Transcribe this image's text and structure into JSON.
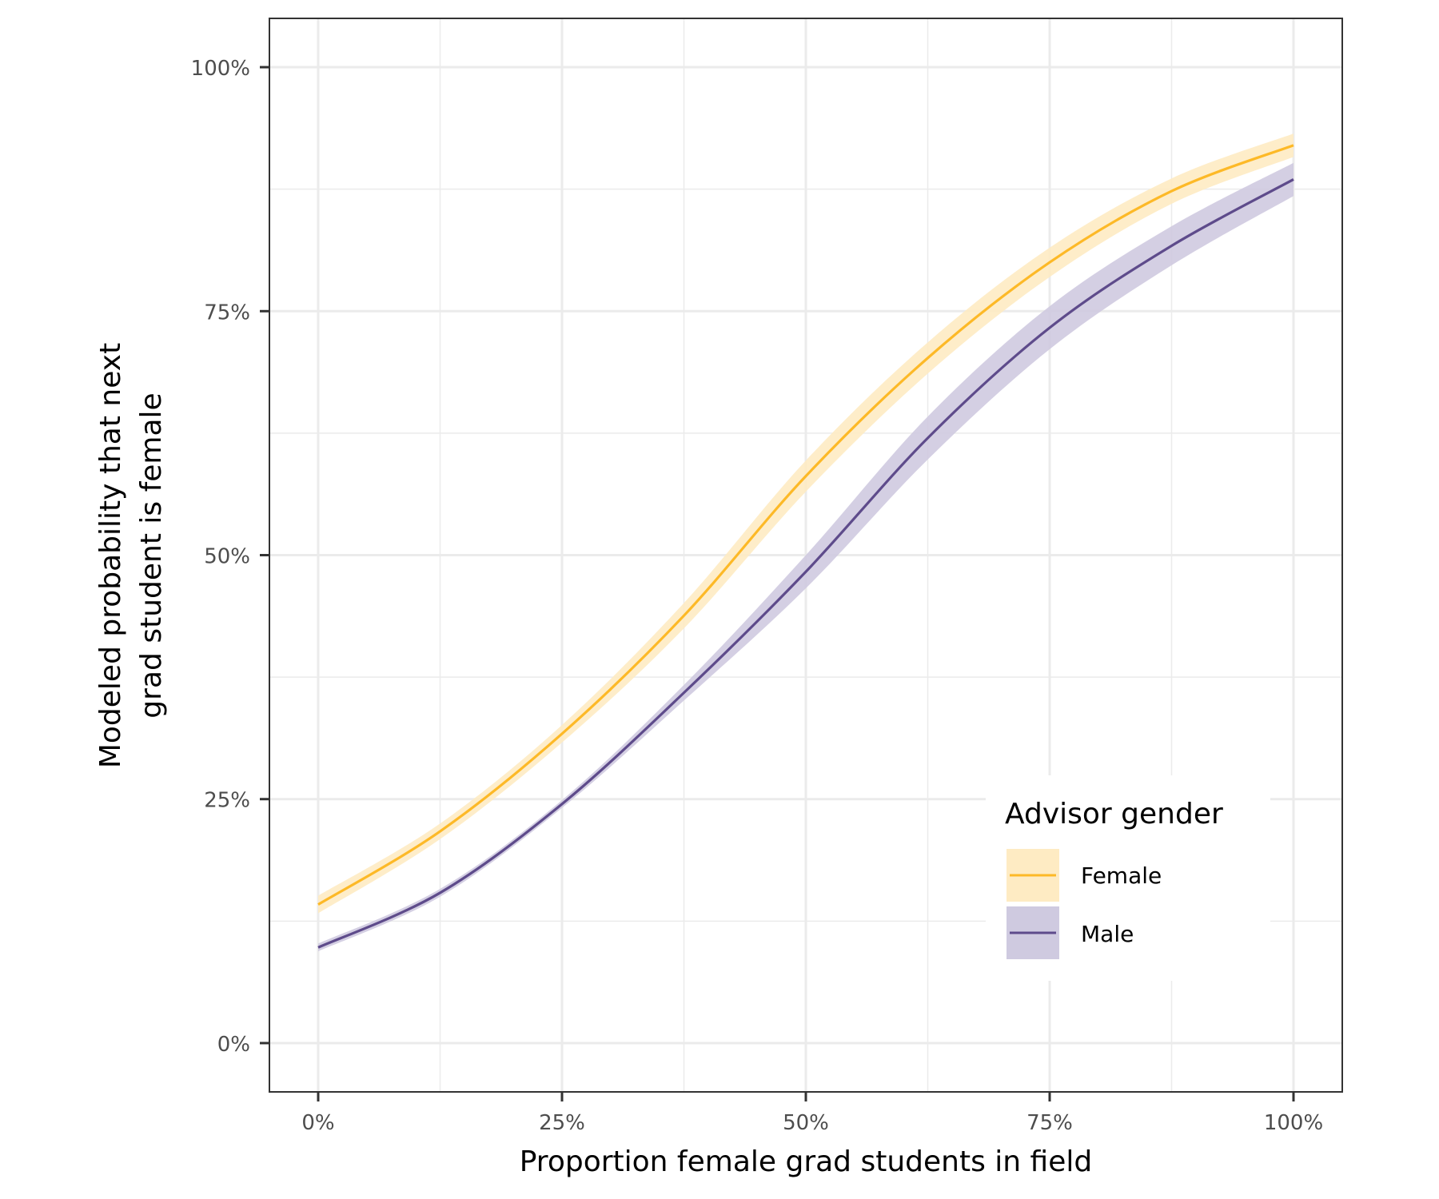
{
  "chart_data": {
    "type": "line",
    "title": "",
    "xlabel": "Proportion female grad students in field",
    "ylabel_lines": [
      "Modeled probability that next",
      "grad student is female"
    ],
    "x_unit": "percent",
    "y_unit": "percent",
    "xlim": [
      -5,
      105
    ],
    "ylim": [
      -5,
      105
    ],
    "x_ticks": [
      0,
      25,
      50,
      75,
      100
    ],
    "x_tick_labels": [
      "0%",
      "25%",
      "50%",
      "75%",
      "100%"
    ],
    "y_ticks": [
      0,
      25,
      50,
      75,
      100
    ],
    "y_tick_labels": [
      "0%",
      "25%",
      "50%",
      "75%",
      "100%"
    ],
    "x_minor_grid": [
      12.5,
      37.5,
      62.5,
      87.5
    ],
    "y_minor_grid": [
      12.5,
      37.5,
      62.5,
      87.5
    ],
    "grid": true,
    "x": [
      0,
      12.5,
      25,
      37.5,
      50,
      62.5,
      75,
      87.5,
      100
    ],
    "series": [
      {
        "name": "Female",
        "color": "#FDB927",
        "ribbon_color": "#FEEBC3",
        "values": [
          14.2,
          21.7,
          31.7,
          43.8,
          58.1,
          70.2,
          80.0,
          87.3,
          92.0
        ],
        "lower": [
          13.3,
          20.9,
          30.8,
          42.5,
          56.5,
          68.6,
          78.5,
          86.0,
          90.8
        ],
        "upper": [
          15.1,
          22.5,
          32.6,
          45.1,
          59.7,
          71.8,
          81.5,
          88.6,
          93.2
        ]
      },
      {
        "name": "Male",
        "color": "#5E4B8B",
        "ribbon_color": "#CFCAE0",
        "values": [
          9.8,
          15.4,
          24.5,
          35.9,
          48.3,
          62.0,
          73.3,
          81.7,
          88.5
        ],
        "lower": [
          9.4,
          15.0,
          24.1,
          35.1,
          46.6,
          59.8,
          71.1,
          79.7,
          86.8
        ],
        "upper": [
          10.2,
          15.8,
          24.9,
          36.7,
          50.0,
          64.2,
          75.5,
          83.7,
          90.2
        ]
      }
    ],
    "legend": {
      "title": "Advisor gender",
      "position": "bottom-right-inside",
      "entries": [
        "Female",
        "Male"
      ]
    }
  }
}
